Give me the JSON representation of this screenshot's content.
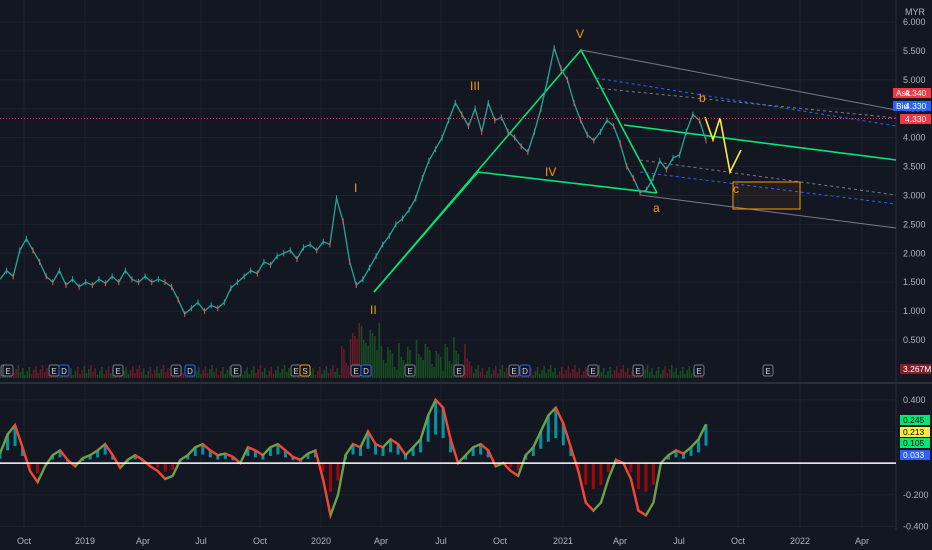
{
  "chart_data": [
    {
      "type": "line",
      "currency": "MYR",
      "y_range": [
        0.3,
        6.1
      ],
      "y_ticks": [
        "6.000",
        "5.500",
        "5.000",
        "4.500",
        "4.000",
        "3.500",
        "3.000",
        "2.500",
        "2.000",
        "1.500",
        "1.000",
        "0.500"
      ],
      "x_ticks": [
        "Oct",
        "2019",
        "Apr",
        "Jul",
        "Oct",
        "2020",
        "Apr",
        "Jul",
        "Oct",
        "2021",
        "Apr",
        "Jul",
        "Oct",
        "2022",
        "Apr"
      ],
      "series": [
        {
          "values": [
            1.55,
            1.7,
            1.6,
            2.05,
            2.25,
            2.05,
            1.85,
            1.6,
            1.5,
            1.7,
            1.45,
            1.55,
            1.42,
            1.5,
            1.45,
            1.55,
            1.48,
            1.6,
            1.5,
            1.7,
            1.55,
            1.5,
            1.6,
            1.5,
            1.55,
            1.5,
            1.42,
            1.2,
            0.95,
            1.05,
            1.15,
            1.0,
            1.1,
            1.05,
            1.15,
            1.4,
            1.5,
            1.6,
            1.7,
            1.65,
            1.85,
            1.8,
            1.95,
            2.0,
            2.05,
            1.9,
            2.1,
            2.15,
            2.05,
            2.2,
            2.15,
            2.95,
            2.55,
            1.85,
            1.45,
            1.55,
            1.75,
            1.95,
            2.15,
            2.3,
            2.5,
            2.6,
            2.75,
            2.95,
            3.3,
            3.6,
            3.8,
            4.0,
            4.3,
            4.6,
            4.4,
            4.2,
            4.5,
            4.1,
            4.6,
            4.3,
            4.35,
            4.1,
            4.0,
            3.85,
            3.75,
            4.1,
            4.5,
            5.0,
            5.55,
            5.2,
            5.0,
            4.6,
            4.3,
            4.05,
            3.95,
            4.1,
            4.3,
            4.2,
            3.9,
            3.5,
            3.3,
            3.05,
            3.1,
            3.3,
            3.6,
            3.45,
            3.65,
            3.7,
            4.1,
            4.4,
            4.3,
            3.95
          ]
        }
      ],
      "wave_labels": [
        "I",
        "II",
        "III",
        "IV",
        "V",
        "a",
        "b",
        "c"
      ],
      "price_tags": {
        "ask_label": "Ask",
        "ask": "4.340",
        "bid_label": "Bid",
        "bid": "4.330",
        "last": "4.330",
        "volume": "3.267M"
      },
      "events": [
        "E",
        "E",
        "D",
        "E",
        "E",
        "D",
        "E",
        "E",
        "S",
        "E",
        "D",
        "E",
        "E",
        "E",
        "D",
        "E",
        "E",
        "E",
        "E",
        "E"
      ]
    },
    {
      "type": "line",
      "y_range": [
        -0.41,
        0.43
      ],
      "y_ticks": [
        "0.400",
        "0.200",
        "-0.200",
        "-0.400"
      ],
      "series": [
        {
          "values": [
            0.06,
            0.18,
            0.24,
            0.1,
            -0.05,
            -0.12,
            -0.02,
            0.05,
            0.08,
            0.02,
            -0.02,
            0.03,
            0.05,
            0.08,
            0.12,
            0.05,
            -0.03,
            0.02,
            0.05,
            0.02,
            -0.02,
            -0.05,
            -0.1,
            -0.08,
            0.02,
            0.05,
            0.1,
            0.12,
            0.08,
            0.05,
            0.06,
            0.04,
            0.0,
            0.1,
            0.08,
            0.05,
            0.1,
            0.12,
            0.08,
            0.04,
            0.02,
            0.06,
            0.08,
            -0.1,
            -0.33,
            -0.2,
            0.05,
            0.12,
            0.1,
            0.2,
            0.12,
            0.1,
            0.15,
            0.12,
            0.05,
            0.1,
            0.15,
            0.3,
            0.4,
            0.35,
            0.15,
            0.0,
            0.05,
            0.1,
            0.12,
            0.08,
            -0.02,
            0.0,
            -0.05,
            -0.08,
            0.05,
            0.1,
            0.2,
            0.3,
            0.35,
            0.25,
            0.1,
            -0.05,
            -0.25,
            -0.3,
            -0.25,
            -0.1,
            0.02,
            0.0,
            -0.1,
            -0.3,
            -0.33,
            -0.25,
            0.0,
            0.05,
            0.08,
            0.06,
            0.1,
            0.15,
            0.245
          ]
        }
      ],
      "value_tags": [
        "0.245",
        "0.213",
        "0.105",
        "0.033"
      ]
    }
  ]
}
